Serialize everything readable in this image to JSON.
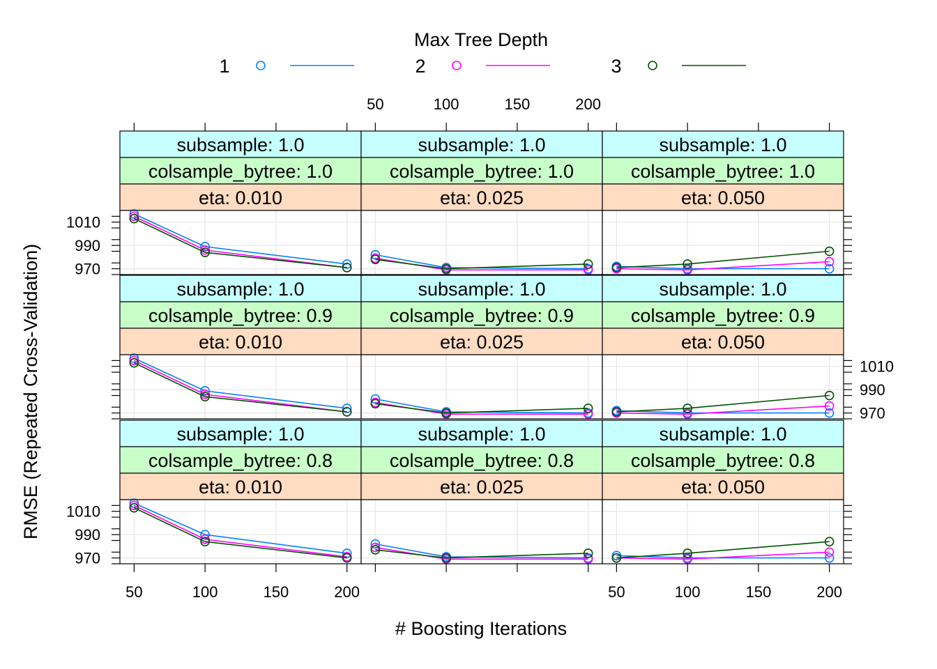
{
  "legend": {
    "title": "Max Tree Depth",
    "entries": [
      {
        "label": "1",
        "color": "#0080ff"
      },
      {
        "label": "2",
        "color": "#ff00ff"
      },
      {
        "label": "3",
        "color": "#005000"
      }
    ]
  },
  "chart_data": {
    "type": "line",
    "xlabel": "# Boosting Iterations",
    "ylabel": "RMSE (Repeated Cross-Validation)",
    "x": [
      50,
      100,
      200
    ],
    "x_ticks": [
      50,
      100,
      150,
      200
    ],
    "y_ticks": [
      970,
      990,
      1010
    ],
    "ylim": [
      965,
      1020
    ],
    "xlim": [
      40,
      210
    ],
    "grid": true,
    "legend_position": "top",
    "series_names": [
      "1",
      "2",
      "3"
    ],
    "panels": [
      {
        "subsample": "subsample: 1.0",
        "colsample": "colsample_bytree: 1.0",
        "eta": "eta: 0.010",
        "series": [
          {
            "name": "1",
            "values": [
              1017,
              989,
              974
            ]
          },
          {
            "name": "2",
            "values": [
              1015,
              986,
              971
            ]
          },
          {
            "name": "3",
            "values": [
              1013,
              984,
              971
            ]
          }
        ]
      },
      {
        "subsample": "subsample: 1.0",
        "colsample": "colsample_bytree: 1.0",
        "eta": "eta: 0.025",
        "series": [
          {
            "name": "1",
            "values": [
              982,
              971,
              970
            ]
          },
          {
            "name": "2",
            "values": [
              979,
              969,
              969
            ]
          },
          {
            "name": "3",
            "values": [
              978,
              970,
              974
            ]
          }
        ]
      },
      {
        "subsample": "subsample: 1.0",
        "colsample": "colsample_bytree: 1.0",
        "eta": "eta: 0.050",
        "series": [
          {
            "name": "1",
            "values": [
              972,
              970,
              970
            ]
          },
          {
            "name": "2",
            "values": [
              970,
              969,
              976
            ]
          },
          {
            "name": "3",
            "values": [
              971,
              974,
              985
            ]
          }
        ]
      },
      {
        "subsample": "subsample: 1.0",
        "colsample": "colsample_bytree: 0.9",
        "eta": "eta: 0.010",
        "series": [
          {
            "name": "1",
            "values": [
              1017,
              989,
              974
            ]
          },
          {
            "name": "2",
            "values": [
              1015,
              986,
              971
            ]
          },
          {
            "name": "3",
            "values": [
              1013,
              984,
              971
            ]
          }
        ]
      },
      {
        "subsample": "subsample: 1.0",
        "colsample": "colsample_bytree: 0.9",
        "eta": "eta: 0.025",
        "series": [
          {
            "name": "1",
            "values": [
              982,
              971,
              970
            ]
          },
          {
            "name": "2",
            "values": [
              979,
              969,
              969
            ]
          },
          {
            "name": "3",
            "values": [
              978,
              970,
              974
            ]
          }
        ]
      },
      {
        "subsample": "subsample: 1.0",
        "colsample": "colsample_bytree: 0.9",
        "eta": "eta: 0.050",
        "series": [
          {
            "name": "1",
            "values": [
              972,
              970,
              970
            ]
          },
          {
            "name": "2",
            "values": [
              970,
              969,
              976
            ]
          },
          {
            "name": "3",
            "values": [
              971,
              974,
              985
            ]
          }
        ]
      },
      {
        "subsample": "subsample: 1.0",
        "colsample": "colsample_bytree: 0.8",
        "eta": "eta: 0.010",
        "series": [
          {
            "name": "1",
            "values": [
              1017,
              990,
              974
            ]
          },
          {
            "name": "2",
            "values": [
              1015,
              986,
              971
            ]
          },
          {
            "name": "3",
            "values": [
              1013,
              984,
              970
            ]
          }
        ]
      },
      {
        "subsample": "subsample: 1.0",
        "colsample": "colsample_bytree: 0.8",
        "eta": "eta: 0.025",
        "series": [
          {
            "name": "1",
            "values": [
              982,
              971,
              970
            ]
          },
          {
            "name": "2",
            "values": [
              979,
              969,
              969
            ]
          },
          {
            "name": "3",
            "values": [
              977,
              970,
              974
            ]
          }
        ]
      },
      {
        "subsample": "subsample: 1.0",
        "colsample": "colsample_bytree: 0.8",
        "eta": "eta: 0.050",
        "series": [
          {
            "name": "1",
            "values": [
              972,
              970,
              970
            ]
          },
          {
            "name": "2",
            "values": [
              970,
              969,
              975
            ]
          },
          {
            "name": "3",
            "values": [
              970,
              974,
              984
            ]
          }
        ]
      }
    ]
  },
  "colors": {
    "strip_subsample": "#c5ffff",
    "strip_colsample": "#c8ffc8",
    "strip_eta": "#ffdcc2",
    "grid": "#e6e6e6"
  }
}
